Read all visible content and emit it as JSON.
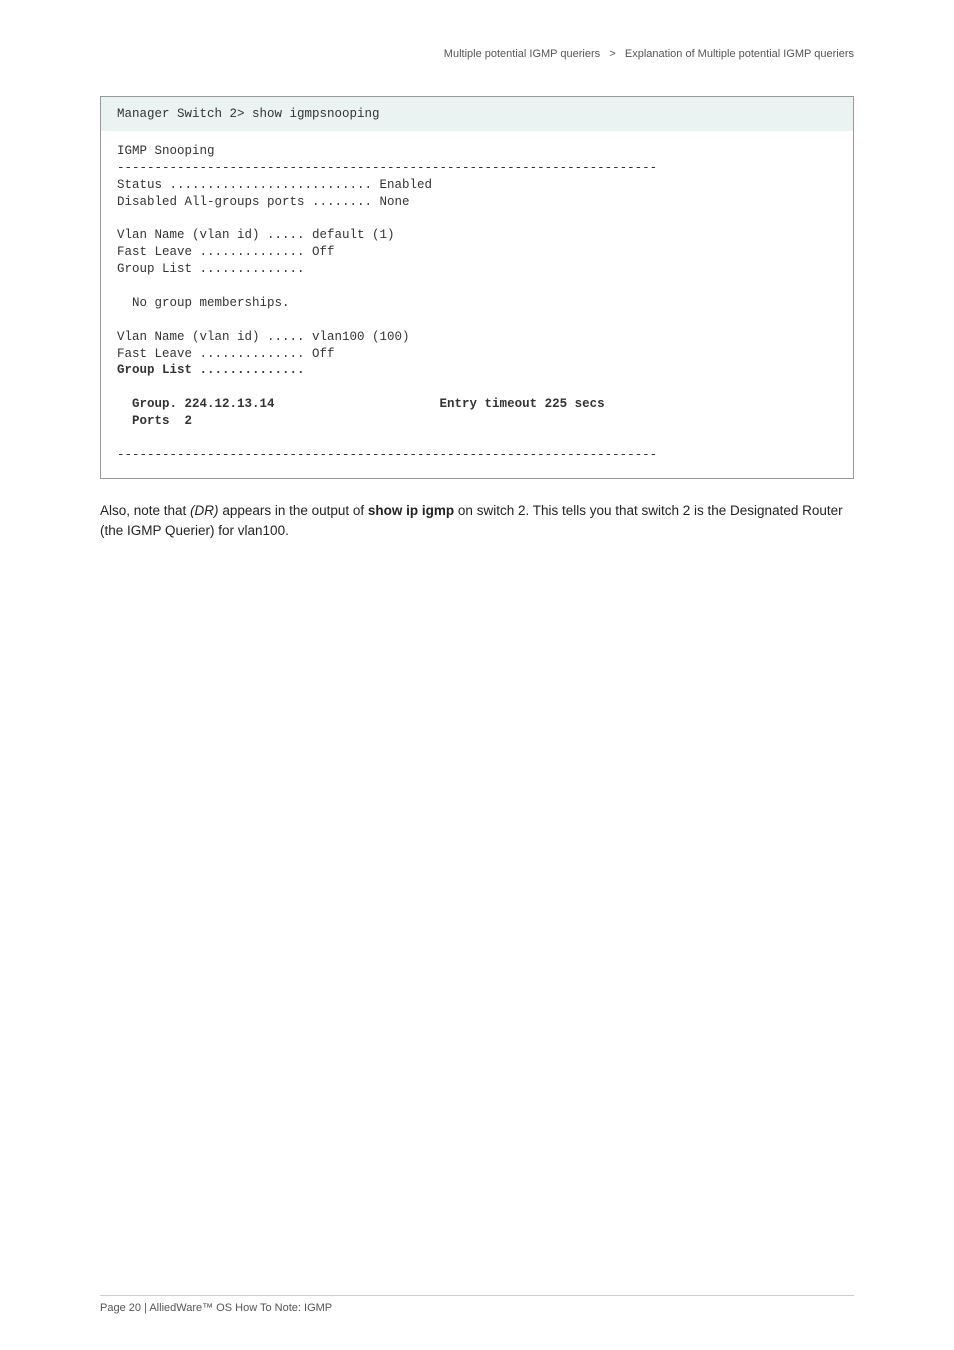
{
  "header": {
    "left": "Multiple potential IGMP queriers",
    "sep": ">",
    "right": "Explanation of Multiple potential IGMP queriers"
  },
  "code": {
    "cmd": "Manager Switch 2> show igmpsnooping",
    "l1": "IGMP Snooping",
    "l2": "------------------------------------------------------------------------",
    "l3": "Status ........................... Enabled",
    "l4": "Disabled All-groups ports ........ None",
    "l5": "",
    "l6": "Vlan Name (vlan id) ..... default (1)",
    "l7": "Fast Leave .............. Off",
    "l8": "Group List ..............",
    "l9": "",
    "l10": "  No group memberships.",
    "l11": "",
    "l12": "Vlan Name (vlan id) ..... vlan100 (100)",
    "l13": "Fast Leave .............. Off",
    "l14": "Group List ..............",
    "l15": "",
    "l16": "  Group. 224.12.13.14                      Entry timeout 225 secs",
    "l17": "  Ports  2",
    "l18": "",
    "l19": "------------------------------------------------------------------------"
  },
  "para": {
    "t1": "Also, note that ",
    "italic": "(DR)",
    "t2": " appears in the output of ",
    "bold": "show ip igmp",
    "t3": " on switch 2. This tells you that switch 2 is the Designated Router (the IGMP Querier) for vlan100."
  },
  "footer": {
    "text": "Page 20 | AlliedWare™ OS How To Note: IGMP"
  }
}
